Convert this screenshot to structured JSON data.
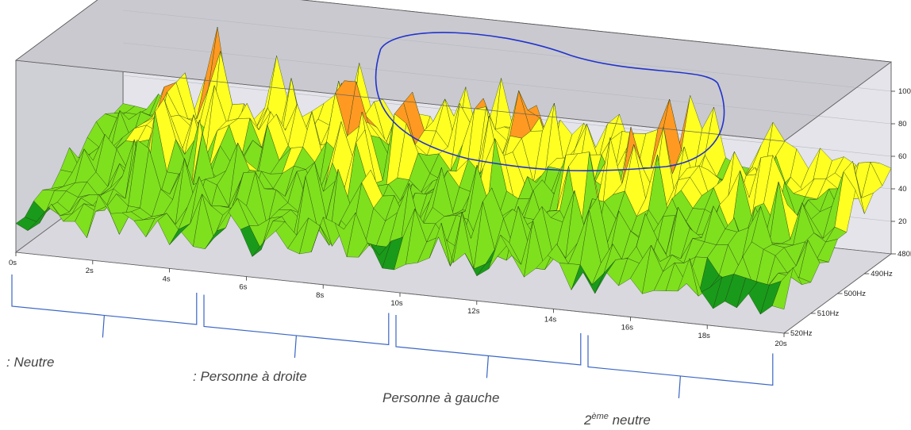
{
  "chart_data": {
    "type": "surface3d",
    "title": "",
    "x_axis": {
      "ticks": [
        "0s",
        "2s",
        "4s",
        "6s",
        "8s",
        "10s",
        "12s",
        "14s",
        "16s",
        "18s",
        "20s"
      ],
      "range": [
        0,
        20
      ],
      "unit": "s"
    },
    "depth_axis": {
      "ticks": [
        "480Hz",
        "490Hz",
        "500Hz",
        "510Hz",
        "520Hz"
      ],
      "range": [
        480,
        520
      ],
      "unit": "Hz"
    },
    "z_axis": {
      "ticks": [
        "20",
        "40",
        "60",
        "80",
        "100"
      ],
      "range": [
        0,
        100
      ]
    },
    "color_scale": [
      "#1a9a1a",
      "#7fe01e",
      "#ffff22",
      "#ff9922",
      "#ee1111"
    ],
    "peak_profile": {
      "t": [
        0,
        1,
        2,
        2.5,
        3,
        4,
        5,
        6,
        6.5,
        7,
        7.5,
        8,
        8.5,
        9,
        10,
        11,
        11.5,
        12,
        13,
        14,
        15,
        15.5,
        16,
        17,
        18,
        18.5,
        19,
        19.5,
        20
      ],
      "max_z": [
        45,
        60,
        72,
        95,
        78,
        80,
        70,
        76,
        92,
        90,
        88,
        80,
        70,
        74,
        82,
        90,
        84,
        80,
        82,
        90,
        80,
        76,
        68,
        72,
        80,
        78,
        60,
        80,
        60
      ]
    },
    "segments": [
      {
        "label": ": Neutre",
        "from": 0,
        "to": 4.5
      },
      {
        "label": ": Personne à droite",
        "from": 5,
        "to": 9.5
      },
      {
        "label": "Personne à gauche",
        "from": 10,
        "to": 14.5
      },
      {
        "label": "2",
        "sup": "ème",
        "suffix": " neutre",
        "from": 15,
        "to": 19.5
      }
    ],
    "highlight": {
      "shape": "ellipse",
      "color": "#2233cc",
      "from": 6.5,
      "to": 16
    }
  }
}
